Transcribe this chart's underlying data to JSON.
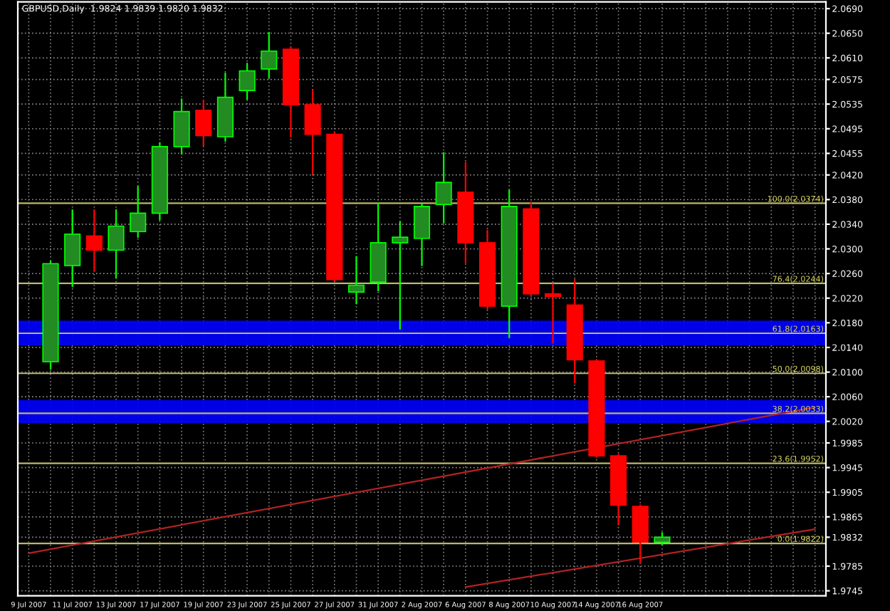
{
  "chart_data": {
    "type": "candlestick",
    "title": "GBPUSD,Daily  1.9824 1.9839 1.9820 1.9832",
    "categories": [
      "9 Jul 2007",
      null,
      "11 Jul 2007",
      null,
      "13 Jul 2007",
      null,
      "17 Jul 2007",
      null,
      "19 Jul 2007",
      null,
      "23 Jul 2007",
      null,
      "25 Jul 2007",
      null,
      "27 Jul 2007",
      null,
      "31 Jul 2007",
      null,
      "2 Aug 2007",
      null,
      "6 Aug 2007",
      null,
      "8 Aug 2007",
      null,
      "10 Aug 2007",
      null,
      "14 Aug 2007",
      null,
      "16 Aug 2007",
      null,
      null,
      null,
      null,
      null,
      null,
      null,
      null
    ],
    "ohlc": [
      null,
      [
        2.0117,
        2.028,
        2.0105,
        2.0276
      ],
      [
        2.0273,
        2.0363,
        2.0239,
        2.0324
      ],
      [
        2.0321,
        2.0363,
        2.0264,
        2.0298
      ],
      [
        2.0298,
        2.0363,
        2.0253,
        2.0337
      ],
      [
        2.0328,
        2.0401,
        2.0319,
        2.0358
      ],
      [
        2.0358,
        2.0472,
        2.0347,
        2.0466
      ],
      [
        2.0466,
        2.0543,
        2.0454,
        2.0523
      ],
      [
        2.0525,
        2.0541,
        2.0468,
        2.0484
      ],
      [
        2.0482,
        2.0585,
        2.0475,
        2.0546
      ],
      [
        2.0557,
        2.0601,
        2.0543,
        2.0589
      ],
      [
        2.0592,
        2.0651,
        2.0578,
        2.0621
      ],
      [
        2.0624,
        2.0627,
        2.0482,
        2.0534
      ],
      [
        2.0534,
        2.0557,
        2.0422,
        2.0486
      ],
      [
        2.0486,
        2.049,
        2.0248,
        2.025
      ],
      [
        2.023,
        2.0287,
        2.0211,
        2.0241
      ],
      [
        2.0246,
        2.0374,
        2.0232,
        2.031
      ],
      [
        2.031,
        2.0344,
        2.017,
        2.0319
      ],
      [
        2.0317,
        2.0372,
        2.0273,
        2.0369
      ],
      [
        2.0372,
        2.0456,
        2.0342,
        2.0408
      ],
      [
        2.0392,
        2.044,
        2.0278,
        2.031
      ],
      [
        2.031,
        2.033,
        2.0202,
        2.0207
      ],
      [
        2.0207,
        2.0395,
        2.0156,
        2.0369
      ],
      [
        2.0365,
        2.0376,
        2.0225,
        2.0227
      ],
      [
        2.0227,
        2.0243,
        2.0147,
        2.0223
      ],
      [
        2.0209,
        2.025,
        2.0083,
        2.012
      ],
      [
        2.0118,
        2.012,
        1.9962,
        1.9964
      ],
      [
        1.9964,
        1.9966,
        1.9852,
        1.9884
      ],
      [
        1.9882,
        1.9884,
        1.979,
        1.9824
      ],
      [
        1.9824,
        1.9839,
        1.982,
        1.9832
      ],
      null,
      null,
      null,
      null,
      null,
      null,
      null
    ],
    "colors": [
      null,
      "#228b22",
      "#228b22",
      "#ff0000",
      "#228b22",
      "#228b22",
      "#228b22",
      "#228b22",
      "#ff0000",
      "#228b22",
      "#228b22",
      "#228b22",
      "#ff0000",
      "#ff0000",
      "#ff0000",
      "#228b22",
      "#228b22",
      "#228b22",
      "#228b22",
      "#228b22",
      "#ff0000",
      "#ff0000",
      "#228b22",
      "#ff0000",
      "#ff0000",
      "#ff0000",
      "#ff0000",
      "#ff0000",
      "#ff0000",
      "#228b22",
      null,
      null,
      null,
      null,
      null,
      null,
      null
    ],
    "series": [
      {
        "type": "line",
        "color": "#b22222",
        "values": [
          1.9806,
          null,
          null,
          null,
          null,
          null,
          null,
          null,
          null,
          null,
          null,
          null,
          null,
          null,
          null,
          null,
          null,
          null,
          null,
          null,
          null,
          null,
          null,
          null,
          null,
          null,
          null,
          null,
          null,
          null,
          null,
          null,
          null,
          null,
          null,
          null,
          2.0043
        ]
      },
      {
        "type": "line",
        "color": "#b22222",
        "values": [
          null,
          null,
          null,
          null,
          null,
          null,
          null,
          null,
          null,
          null,
          null,
          null,
          null,
          null,
          null,
          null,
          null,
          null,
          null,
          null,
          1.9751,
          null,
          null,
          null,
          null,
          null,
          null,
          null,
          null,
          null,
          null,
          null,
          null,
          null,
          null,
          null,
          1.9845
        ]
      }
    ],
    "ylim": [
      1.9737,
      2.0701
    ],
    "yticks": [
      1.9745,
      1.9785,
      1.9832,
      1.9865,
      1.9905,
      1.9945,
      1.9985,
      {
        "value": 2.002,
        "label": "2.0020"
      },
      {
        "value": 2.006,
        "label": "2.0060"
      },
      {
        "value": 2.01,
        "label": "2.0100"
      },
      {
        "value": 2.014,
        "label": "2.0140"
      },
      {
        "value": 2.018,
        "label": "2.0180"
      },
      {
        "value": 2.022,
        "label": "2.0220"
      },
      {
        "value": 2.026,
        "label": "2.0260"
      },
      {
        "value": 2.03,
        "label": "2.0300"
      },
      {
        "value": 2.034,
        "label": "2.0340"
      },
      {
        "value": 2.038,
        "label": "2.0380"
      },
      {
        "value": 2.042,
        "label": "2.0420"
      },
      2.0455,
      2.0495,
      2.0535,
      2.0575,
      {
        "value": 2.061,
        "label": "2.0610"
      },
      {
        "value": 2.065,
        "label": "2.0650"
      },
      {
        "value": 2.069,
        "label": "2.0690"
      }
    ],
    "ref_lines": [
      {
        "axis": "y",
        "value": 2.0374,
        "label": "100.0(2.0374)",
        "color": "#bdb76b"
      },
      {
        "axis": "y",
        "value": 2.0244,
        "label": "76.4(2.0244)",
        "color": "#bdb76b"
      },
      {
        "axis": "y",
        "value": 2.0163,
        "label": "61.8(2.0163)",
        "color": "#bdb76b"
      },
      {
        "axis": "y",
        "value": 2.0098,
        "label": "50.0(2.0098)",
        "color": "#bdb76b"
      },
      {
        "axis": "y",
        "value": 2.0033,
        "label": "38.2(2.0033)",
        "color": "#bdb76b"
      },
      {
        "axis": "y",
        "value": 1.9952,
        "label": "23.6(1.9952)",
        "color": "#bdb76b"
      },
      {
        "axis": "y",
        "value": 1.9822,
        "label": "0.0(1.9822)",
        "color": "#bdb76b"
      }
    ],
    "bands": [
      {
        "axis": "y",
        "from": 2.0145,
        "to": 2.0182,
        "color": "#0000ff"
      },
      {
        "axis": "y",
        "from": 2.0019,
        "to": 2.0053,
        "color": "#0000ff"
      }
    ],
    "grid": true
  }
}
